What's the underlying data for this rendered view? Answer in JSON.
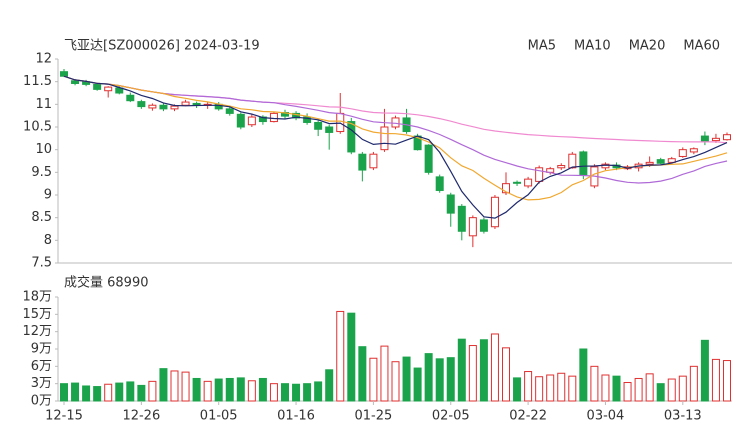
{
  "chart_data": [
    {
      "type": "candlestick",
      "title": "飞亚达[SZ000026] 2024-03-19",
      "open": [
        11.72,
        11.52,
        11.5,
        11.44,
        11.3,
        11.36,
        11.2,
        11.06,
        10.92,
        10.98,
        10.9,
        10.98,
        11.02,
        10.98,
        11.0,
        10.9,
        10.78,
        10.55,
        10.72,
        10.62,
        10.82,
        10.8,
        10.72,
        10.6,
        10.5,
        10.4,
        10.62,
        9.9,
        9.6,
        10.0,
        10.5,
        10.7,
        10.3,
        10.1,
        9.4,
        9.0,
        8.75,
        8.1,
        8.45,
        8.3,
        9.05,
        9.28,
        9.2,
        9.3,
        9.5,
        9.6,
        9.6,
        9.95,
        9.2,
        9.6,
        9.66,
        9.58,
        9.6,
        9.68,
        9.78,
        9.72,
        9.85,
        9.95,
        10.3,
        10.2,
        10.22
      ],
      "high": [
        11.78,
        11.56,
        11.54,
        11.48,
        11.4,
        11.4,
        11.26,
        11.1,
        11.02,
        11.04,
        11.0,
        11.1,
        11.06,
        11.06,
        11.05,
        10.94,
        10.82,
        10.78,
        10.76,
        10.84,
        10.88,
        10.85,
        10.8,
        10.66,
        10.55,
        11.25,
        10.7,
        9.95,
        9.95,
        10.9,
        10.75,
        10.9,
        10.35,
        10.12,
        9.45,
        9.05,
        8.8,
        8.55,
        8.5,
        9.0,
        9.5,
        9.32,
        9.4,
        9.65,
        9.62,
        9.7,
        9.95,
        9.98,
        9.68,
        9.72,
        9.72,
        9.66,
        9.72,
        9.85,
        9.82,
        9.84,
        10.05,
        10.05,
        10.4,
        10.35,
        10.38
      ],
      "low": [
        11.6,
        11.42,
        11.4,
        11.3,
        11.15,
        11.22,
        11.05,
        10.9,
        10.86,
        10.85,
        10.85,
        10.96,
        10.92,
        10.9,
        10.86,
        10.75,
        10.45,
        10.5,
        10.55,
        10.6,
        10.68,
        10.65,
        10.55,
        10.3,
        10.0,
        10.35,
        9.9,
        9.3,
        9.55,
        9.95,
        10.45,
        10.35,
        9.98,
        9.45,
        9.05,
        8.3,
        8.0,
        7.85,
        8.15,
        8.25,
        9.0,
        9.2,
        9.15,
        9.25,
        9.45,
        9.55,
        9.58,
        9.35,
        9.15,
        9.55,
        9.55,
        9.55,
        9.52,
        9.62,
        9.68,
        9.7,
        9.82,
        9.9,
        10.1,
        10.15,
        10.2
      ],
      "close": [
        11.62,
        11.46,
        11.44,
        11.33,
        11.38,
        11.25,
        11.08,
        10.95,
        10.98,
        10.9,
        10.96,
        11.05,
        10.98,
        11.0,
        10.9,
        10.8,
        10.5,
        10.72,
        10.62,
        10.8,
        10.74,
        10.7,
        10.6,
        10.45,
        10.38,
        10.8,
        9.95,
        9.55,
        9.9,
        10.5,
        10.7,
        10.4,
        10.0,
        9.5,
        9.1,
        8.6,
        8.2,
        8.5,
        8.2,
        8.95,
        9.25,
        9.27,
        9.35,
        9.6,
        9.58,
        9.65,
        9.9,
        9.45,
        9.62,
        9.68,
        9.6,
        9.62,
        9.68,
        9.72,
        9.7,
        9.8,
        10.0,
        10.02,
        10.18,
        10.25,
        10.33
      ],
      "ylim": [
        7.5,
        12
      ],
      "yticks": [
        7.5,
        8,
        8.5,
        9,
        9.5,
        10,
        10.5,
        11,
        11.5,
        12
      ],
      "up_color": "#e03030",
      "down_color": "#1aa34a",
      "ma": [
        {
          "name": "MA5",
          "color": "#1f2a6e"
        },
        {
          "name": "MA10",
          "color": "#f0a830"
        },
        {
          "name": "MA20",
          "color": "#b06ad8"
        },
        {
          "name": "MA60",
          "color": "#f08ad0"
        }
      ]
    },
    {
      "type": "bar",
      "title": "成交量 68990",
      "categories": [
        "12-15",
        null,
        null,
        null,
        null,
        null,
        null,
        "12-26",
        null,
        null,
        null,
        null,
        null,
        null,
        "01-05",
        null,
        null,
        null,
        null,
        null,
        null,
        "01-16",
        null,
        null,
        null,
        null,
        null,
        null,
        "01-25",
        null,
        null,
        null,
        null,
        null,
        null,
        "02-05",
        null,
        null,
        null,
        null,
        null,
        null,
        "02-22",
        null,
        null,
        null,
        null,
        null,
        null,
        "03-04",
        null,
        null,
        null,
        null,
        null,
        null,
        "03-13",
        null,
        null,
        null,
        null
      ],
      "values": [
        3.0,
        3.1,
        2.6,
        2.5,
        2.9,
        3.1,
        3.3,
        2.7,
        3.4,
        5.6,
        5.2,
        5.0,
        3.9,
        3.4,
        3.8,
        3.9,
        4.0,
        3.5,
        3.9,
        3.0,
        3.0,
        2.9,
        3.0,
        3.3,
        5.4,
        15.5,
        15.2,
        9.4,
        7.4,
        9.5,
        6.8,
        7.6,
        5.7,
        8.2,
        7.3,
        7.5,
        10.7,
        9.6,
        10.6,
        11.6,
        9.2,
        4.0,
        5.1,
        4.2,
        4.5,
        4.8,
        4.3,
        9.0,
        6.0,
        4.5,
        4.3,
        3.2,
        3.9,
        4.7,
        3.0,
        3.8,
        4.3,
        6.0,
        10.5,
        7.2,
        7.0
      ],
      "ylim": [
        0,
        18
      ],
      "yticks": [
        {
          "value": 0,
          "label": "0万"
        },
        {
          "value": 3,
          "label": "3万"
        },
        {
          "value": 6,
          "label": "6万"
        },
        {
          "value": 9,
          "label": "9万"
        },
        {
          "value": 12,
          "label": "12万"
        },
        {
          "value": 15,
          "label": "15万"
        },
        {
          "value": 18,
          "label": "18万"
        }
      ]
    }
  ]
}
